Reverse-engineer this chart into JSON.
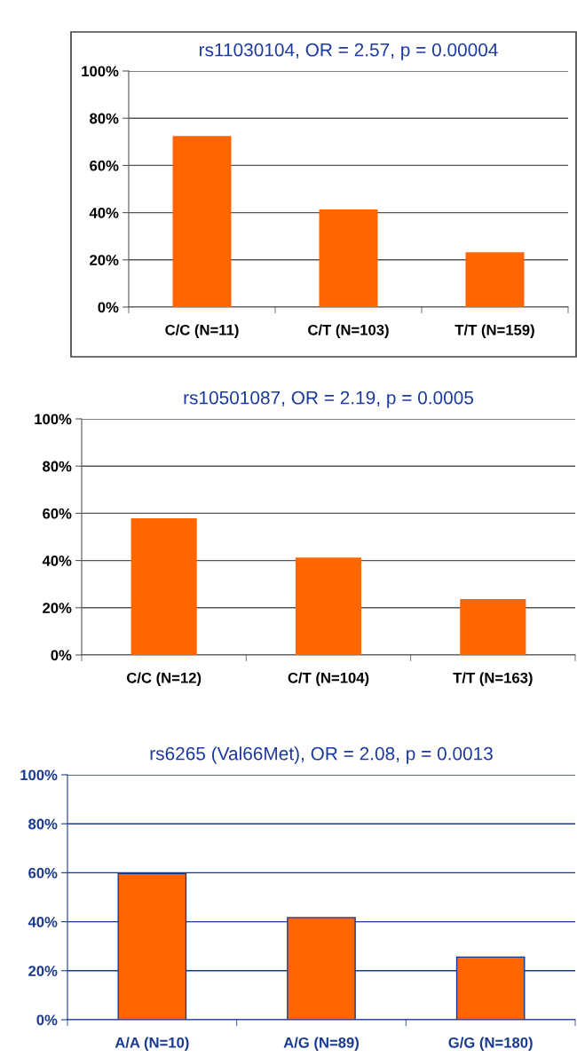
{
  "chart_data": [
    {
      "type": "bar",
      "title": "rs11030104, OR = 2.57, p = 0.00004",
      "categories": [
        "C/C (N=11)",
        "C/T (N=103)",
        "T/T (N=159)"
      ],
      "values": [
        72.5,
        41.4,
        23.2
      ],
      "color": "#ff6600",
      "ylim": [
        0,
        100
      ],
      "yticks": [
        {
          "value": 0,
          "label": "0%"
        },
        {
          "value": 20,
          "label": "20%"
        },
        {
          "value": 40,
          "label": "40%"
        },
        {
          "value": 60,
          "label": "60%"
        },
        {
          "value": 80,
          "label": "80%"
        },
        {
          "value": 100,
          "label": "100%"
        }
      ],
      "grid": "y"
    },
    {
      "type": "bar",
      "title": "rs10501087, OR = 2.19, p = 0.0005",
      "categories": [
        "C/C (N=12)",
        "C/T (N=104)",
        "T/T (N=163)"
      ],
      "values": [
        57.9,
        41.3,
        23.7
      ],
      "color": "#ff6600",
      "ylim": [
        0,
        100
      ],
      "yticks": [
        {
          "value": 0,
          "label": "0%"
        },
        {
          "value": 20,
          "label": "20%"
        },
        {
          "value": 40,
          "label": "40%"
        },
        {
          "value": 60,
          "label": "60%"
        },
        {
          "value": 80,
          "label": "80%"
        },
        {
          "value": 100,
          "label": "100%"
        }
      ],
      "grid": "y"
    },
    {
      "type": "bar",
      "title": "rs6265 (Val66Met), OR = 2.08, p = 0.0013",
      "categories": [
        "A/A (N=10)",
        "A/G (N=89)",
        "G/G (N=180)"
      ],
      "values": [
        59.7,
        41.7,
        25.6
      ],
      "color": "#ff6600",
      "ylim": [
        0,
        100
      ],
      "yticks": [
        {
          "value": 0,
          "label": "0%"
        },
        {
          "value": 20,
          "label": "20%"
        },
        {
          "value": 40,
          "label": "40%"
        },
        {
          "value": 60,
          "label": "60%"
        },
        {
          "value": 80,
          "label": "80%"
        },
        {
          "value": 100,
          "label": "100%"
        }
      ],
      "grid": "y"
    }
  ]
}
